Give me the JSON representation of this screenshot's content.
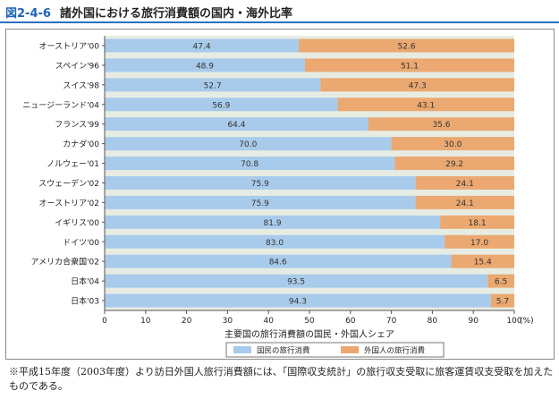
{
  "header": {
    "figure_number": "図2-4-6",
    "title": "諸外国における旅行消費額の国内・海外比率"
  },
  "chart_data": {
    "type": "bar",
    "stacked": true,
    "orientation": "horizontal",
    "categories": [
      "オーストリア'00",
      "スペイン'96",
      "スイス'98",
      "ニュージーランド'04",
      "フランス'99",
      "カナダ'00",
      "ノルウェー'01",
      "スウェーデン'02",
      "オーストリア'02",
      "イギリス'00",
      "ドイツ'00",
      "アメリカ合衆国'02",
      "日本'04",
      "日本'03"
    ],
    "series": [
      {
        "name": "国民の旅行消費",
        "color": "#a9cbeb",
        "values": [
          47.4,
          48.9,
          52.7,
          56.9,
          64.4,
          70.0,
          70.8,
          75.9,
          75.9,
          81.9,
          83.0,
          84.6,
          93.5,
          94.3
        ]
      },
      {
        "name": "外国人の旅行消費",
        "color": "#eba871",
        "values": [
          52.6,
          51.1,
          47.3,
          43.1,
          35.6,
          30.0,
          29.2,
          24.1,
          24.1,
          18.1,
          17.0,
          15.4,
          6.5,
          5.7
        ]
      }
    ],
    "x_ticks": [
      "0",
      "10",
      "20",
      "30",
      "40",
      "50",
      "60",
      "70",
      "80",
      "90",
      "100"
    ],
    "x_unit": "(%)",
    "xlabel": "主要国の旅行消費額の国民・外国人シェア",
    "xlim": [
      0,
      100
    ],
    "legend_position": "bottom-center"
  },
  "note": "※平成15年度（2003年度）より訪日外国人旅行消費額には、「国際収支統計」の旅行収支受取に旅客運賃収支受取を加えたものである。"
}
